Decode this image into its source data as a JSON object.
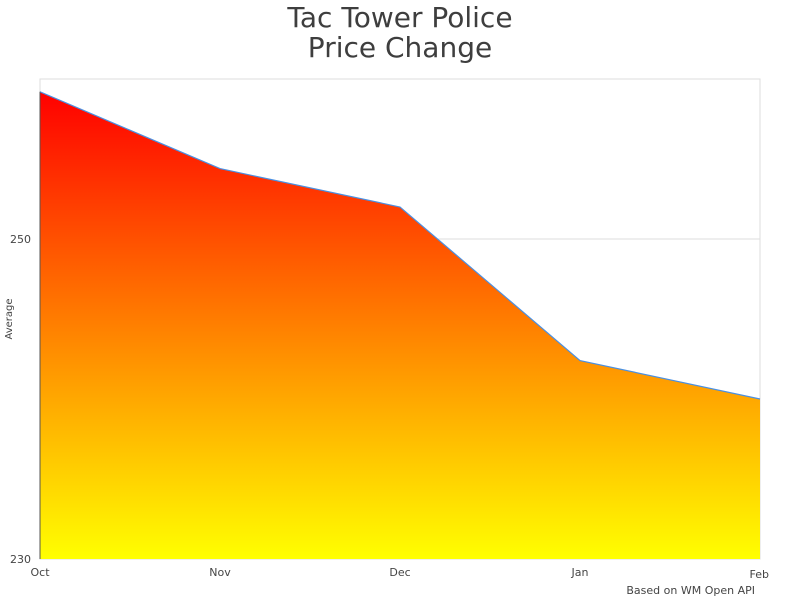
{
  "chart_data": {
    "type": "area",
    "title": [
      "Tac Tower Police",
      "Price Change"
    ],
    "xlabel": "",
    "ylabel": "Average",
    "categories": [
      "Oct",
      "Nov",
      "Dec",
      "Jan",
      "Feb"
    ],
    "series": [
      {
        "name": "Average",
        "values": [
          259.2,
          254.4,
          252.0,
          242.4,
          240.0
        ]
      }
    ],
    "ylim": [
      230,
      260
    ],
    "yticks": [
      230,
      250
    ],
    "grid": true,
    "colors": {
      "fill_top": "#ff0000",
      "fill_bottom": "#ffff00",
      "line": "#4a90e2",
      "grid": "#dddddd",
      "text": "#444444"
    }
  },
  "credit": "Based on WM Open API"
}
